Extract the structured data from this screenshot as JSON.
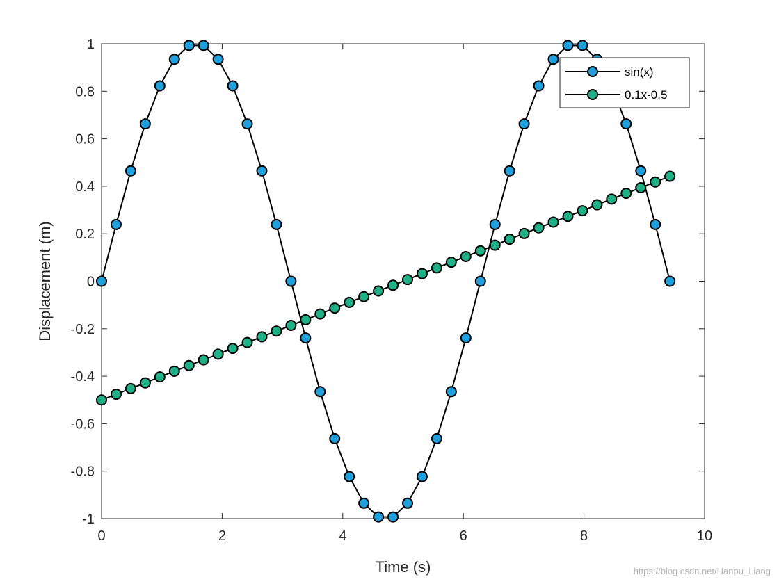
{
  "chart_data": {
    "type": "line",
    "xlabel": "Time (s)",
    "ylabel": "Displacement (m)",
    "xlim": [
      0,
      10
    ],
    "ylim": [
      -1,
      1
    ],
    "xticks": [
      0,
      2,
      4,
      6,
      8,
      10
    ],
    "yticks": [
      -1,
      -0.8,
      -0.6,
      -0.4,
      -0.2,
      0,
      0.2,
      0.4,
      0.6,
      0.8,
      1
    ],
    "xtick_labels": [
      "0",
      "2",
      "4",
      "6",
      "8",
      "10"
    ],
    "ytick_labels": [
      "-1",
      "-0.8",
      "-0.6",
      "-0.4",
      "-0.2",
      "0",
      "0.2",
      "0.4",
      "0.6",
      "0.8",
      "1"
    ],
    "grid": false,
    "legend_position": "top-right",
    "series": [
      {
        "name": "sin(x)",
        "color": "#1f9fdc",
        "line_color": "#000000",
        "x": [
          0,
          0.2417,
          0.4833,
          0.725,
          0.9666,
          1.2083,
          1.45,
          1.6916,
          1.9333,
          2.1749,
          2.4166,
          2.6583,
          2.8999,
          3.1416,
          3.3833,
          3.6249,
          3.8666,
          4.1082,
          4.3499,
          4.5916,
          4.8332,
          5.0749,
          5.3165,
          5.5582,
          5.7999,
          6.0415,
          6.2832,
          6.5249,
          6.7665,
          7.0082,
          7.2498,
          7.4915,
          7.7332,
          7.9748,
          8.2165,
          8.4581,
          8.6998,
          8.9415,
          9.1831,
          9.4248
        ],
        "y": [
          0,
          0.239,
          0.465,
          0.663,
          0.823,
          0.935,
          0.993,
          0.993,
          0.935,
          0.823,
          0.663,
          0.465,
          0.239,
          0,
          -0.239,
          -0.465,
          -0.663,
          -0.823,
          -0.935,
          -0.993,
          -0.993,
          -0.935,
          -0.823,
          -0.663,
          -0.465,
          -0.239,
          0,
          0.239,
          0.465,
          0.663,
          0.823,
          0.935,
          0.993,
          0.993,
          0.935,
          0.823,
          0.663,
          0.465,
          0.239,
          0
        ]
      },
      {
        "name": "0.1x-0.5",
        "color": "#1fb087",
        "line_color": "#000000",
        "x": [
          0,
          0.2417,
          0.4833,
          0.725,
          0.9666,
          1.2083,
          1.45,
          1.6916,
          1.9333,
          2.1749,
          2.4166,
          2.6583,
          2.8999,
          3.1416,
          3.3833,
          3.6249,
          3.8666,
          4.1082,
          4.3499,
          4.5916,
          4.8332,
          5.0749,
          5.3165,
          5.5582,
          5.7999,
          6.0415,
          6.2832,
          6.5249,
          6.7665,
          7.0082,
          7.2498,
          7.4915,
          7.7332,
          7.9748,
          8.2165,
          8.4581,
          8.6998,
          8.9415,
          9.1831,
          9.4248
        ],
        "y": [
          -0.5,
          -0.476,
          -0.452,
          -0.428,
          -0.403,
          -0.379,
          -0.355,
          -0.331,
          -0.307,
          -0.283,
          -0.258,
          -0.234,
          -0.21,
          -0.186,
          -0.162,
          -0.138,
          -0.113,
          -0.089,
          -0.065,
          -0.041,
          -0.017,
          0.007,
          0.032,
          0.056,
          0.08,
          0.104,
          0.128,
          0.152,
          0.177,
          0.201,
          0.225,
          0.249,
          0.273,
          0.297,
          0.322,
          0.346,
          0.37,
          0.394,
          0.418,
          0.442
        ]
      }
    ]
  },
  "watermark": "https://blog.csdn.net/Hanpu_Liang"
}
